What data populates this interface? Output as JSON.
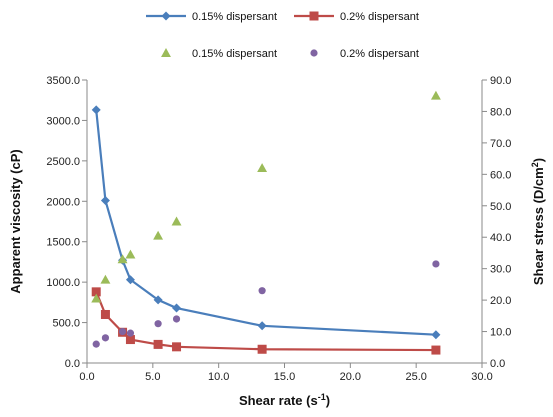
{
  "chart_data": {
    "type": "line",
    "xlabel": "Shear rate (s",
    "xlabel_sup": "-1",
    "xlabel_end": ")",
    "ylabel_left": "Apparent viscosity (cP)",
    "ylabel_right": "Shear stress (D/cm",
    "ylabel_right_sup": "2",
    "ylabel_right_end": ")",
    "xlim": [
      0,
      30
    ],
    "ylim_left": [
      0,
      3500
    ],
    "ylim_right": [
      0,
      90
    ],
    "x_ticks": [
      0.0,
      5.0,
      10.0,
      15.0,
      20.0,
      25.0,
      30.0
    ],
    "x_tick_labels": [
      "0.0",
      "5.0",
      "10.0",
      "15.0",
      "20.0",
      "25.0",
      "30.0"
    ],
    "y_left_ticks": [
      0,
      500,
      1000,
      1500,
      2000,
      2500,
      3000,
      3500
    ],
    "y_left_tick_labels": [
      "0.0",
      "500.0",
      "1000.0",
      "1500.0",
      "2000.0",
      "2500.0",
      "3000.0",
      "3500.0"
    ],
    "y_right_ticks": [
      0,
      10,
      20,
      30,
      40,
      50,
      60,
      70,
      80,
      90
    ],
    "y_right_tick_labels": [
      "0.0",
      "10.0",
      "20.0",
      "30.0",
      "40.0",
      "50.0",
      "60.0",
      "70.0",
      "80.0",
      "90.0"
    ],
    "grid": false,
    "legend_position": "top",
    "series": [
      {
        "name": "0.15% dispersant",
        "kind": "line",
        "marker": "diamond",
        "axis": "left",
        "color": "#4a7ebb",
        "x": [
          0.7,
          1.4,
          2.7,
          3.3,
          5.4,
          6.8,
          13.3,
          26.5
        ],
        "y": [
          3130,
          2010,
          1270,
          1030,
          780,
          680,
          460,
          350
        ]
      },
      {
        "name": "0.2% dispersant",
        "kind": "line",
        "marker": "square",
        "axis": "left",
        "color": "#be4b48",
        "x": [
          0.7,
          1.4,
          2.7,
          3.3,
          5.4,
          6.8,
          13.3,
          26.5
        ],
        "y": [
          880,
          600,
          380,
          290,
          230,
          200,
          170,
          160
        ]
      },
      {
        "name": "0.15% dispersant",
        "kind": "scatter",
        "marker": "triangle",
        "axis": "right",
        "color": "#9bbb59",
        "x": [
          0.7,
          1.4,
          2.7,
          3.3,
          5.4,
          6.8,
          13.3,
          26.5
        ],
        "y": [
          20.5,
          26.5,
          33,
          34.5,
          40.5,
          45,
          62,
          85
        ]
      },
      {
        "name": "0.2% dispersant",
        "kind": "scatter",
        "marker": "circle",
        "axis": "right",
        "color": "#8064a2",
        "x": [
          0.7,
          1.4,
          2.7,
          3.3,
          5.4,
          6.8,
          13.3,
          26.5
        ],
        "y": [
          6,
          8,
          10,
          9.5,
          12.5,
          14,
          23,
          31.5
        ]
      }
    ]
  }
}
